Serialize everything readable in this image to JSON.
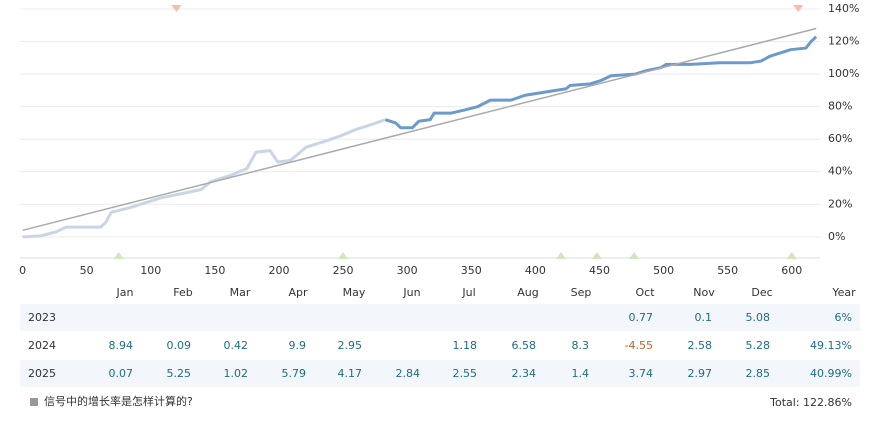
{
  "chart_data": {
    "type": "line",
    "xlim": [
      -2,
      622
    ],
    "ylim": [
      -13,
      140
    ],
    "xticks": [
      0,
      50,
      100,
      150,
      200,
      250,
      300,
      350,
      400,
      450,
      500,
      550,
      600
    ],
    "yticks": [
      {
        "value": 0,
        "label": "0%"
      },
      {
        "value": 20,
        "label": "20%"
      },
      {
        "value": 40,
        "label": "40%"
      },
      {
        "value": 60,
        "label": "60%"
      },
      {
        "value": 80,
        "label": "80%"
      },
      {
        "value": 100,
        "label": "100%"
      },
      {
        "value": 120,
        "label": "120%"
      },
      {
        "value": 140,
        "label": "140%"
      }
    ],
    "grid": true,
    "series": [
      {
        "color": "#c9d5e7",
        "x": [
          0,
          14,
          26,
          34,
          61,
          65,
          69,
          84,
          96,
          108,
          127,
          139,
          147,
          163,
          175,
          182,
          193,
          199,
          209,
          221,
          233,
          248,
          260,
          272,
          283
        ],
        "values": [
          0,
          0.6,
          3,
          6,
          6,
          9,
          15,
          18,
          21,
          24,
          27,
          29,
          34,
          38,
          42,
          52,
          53,
          46,
          47,
          55,
          58,
          62,
          66,
          69,
          72
        ]
      },
      {
        "color": "#6b9acb",
        "x": [
          283,
          291,
          295,
          304,
          309,
          318,
          321,
          334,
          345,
          355,
          365,
          381,
          392,
          408,
          424,
          427,
          443,
          451,
          459,
          478,
          486,
          498,
          502,
          521,
          544,
          568,
          576,
          583,
          599,
          611,
          615,
          619
        ],
        "values": [
          72,
          70,
          67,
          67,
          71,
          72,
          76,
          76,
          78,
          80,
          84,
          84,
          87,
          89,
          91,
          93,
          94,
          96,
          99,
          100,
          102,
          104,
          106,
          106,
          107,
          107,
          108,
          111,
          115,
          116,
          120,
          123
        ]
      },
      {
        "color": "#aaaaaa",
        "x": [
          0,
          619
        ],
        "values": [
          4,
          128
        ]
      }
    ],
    "markers": [
      {
        "color": "#f6bcae",
        "direction": "down",
        "x": [
          120,
          605
        ]
      },
      {
        "color": "#cfe6bf",
        "direction": "up",
        "x": [
          75,
          250,
          420,
          448,
          477,
          600
        ]
      }
    ]
  },
  "table": {
    "header": [
      "Jan",
      "Feb",
      "Mar",
      "Apr",
      "May",
      "Jun",
      "Jul",
      "Aug",
      "Sep",
      "Oct",
      "Nov",
      "Dec",
      "Year"
    ],
    "rows": [
      [
        "2023",
        null,
        null,
        null,
        null,
        null,
        null,
        null,
        null,
        null,
        "0.77",
        "0.1",
        "5.08",
        "6%"
      ],
      [
        "2024",
        "8.94",
        "0.09",
        "0.42",
        "9.9",
        "2.95",
        null,
        "1.18",
        "6.58",
        "8.3",
        "-4.55",
        "2.58",
        "5.28",
        "49.13%"
      ],
      [
        "2025",
        "0.07",
        "5.25",
        "1.02",
        "5.79",
        "4.17",
        "2.84",
        "2.55",
        "2.34",
        "1.4",
        "3.74",
        "2.97",
        "2.85",
        "40.99%"
      ]
    ],
    "footer_link": "信号中的增长率是怎样计算的?",
    "total": "Total: 122.86%"
  }
}
